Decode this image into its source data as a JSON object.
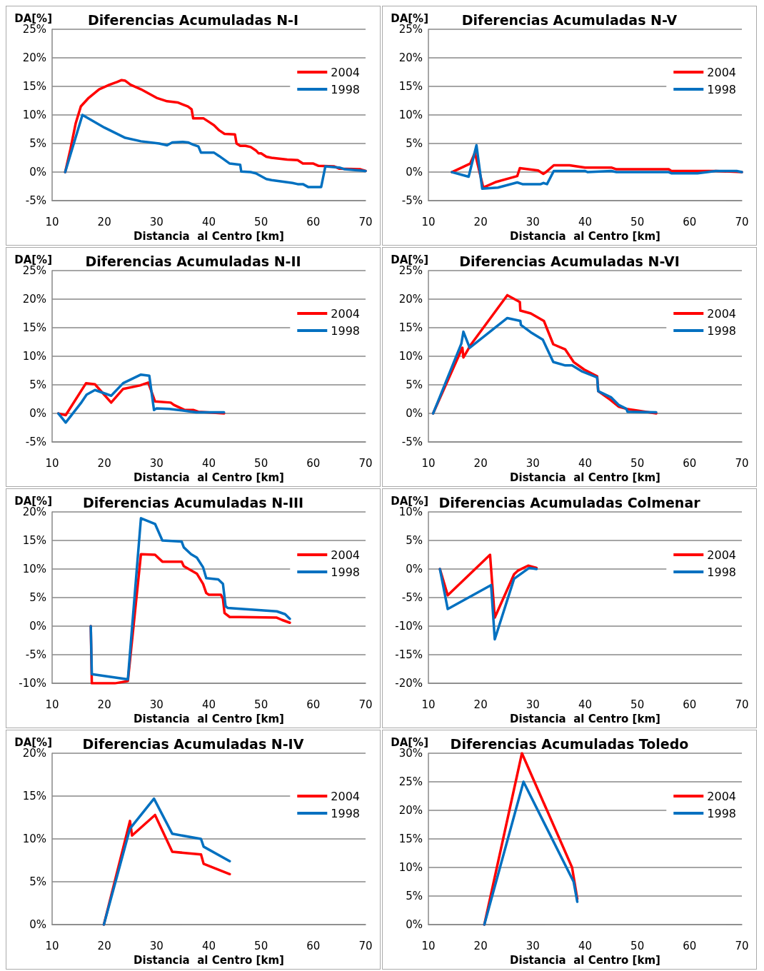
{
  "chart_data": [
    {
      "type": "line",
      "title": "Diferencias Acumuladas N-I",
      "xlabel": "Distancia  al Centro [km]",
      "ylabel": "DA[%]",
      "xlim": [
        10,
        70
      ],
      "xticks": [
        10,
        20,
        30,
        40,
        50,
        60,
        70
      ],
      "ylim": [
        -5,
        25
      ],
      "yticks": [
        {
          "value": -5,
          "label": "-5%"
        },
        {
          "value": 0,
          "label": "0%"
        },
        {
          "value": 5,
          "label": "5%"
        },
        {
          "value": 10,
          "label": "10%"
        },
        {
          "value": 15,
          "label": "15%"
        },
        {
          "value": 20,
          "label": "20%"
        },
        {
          "value": 25,
          "label": "25%"
        }
      ],
      "grid": "y",
      "legend": "right",
      "marker": "none",
      "series": [
        {
          "name": "2004",
          "color": "#ff0000",
          "x": [
            12.5,
            13.5,
            14.5,
            15.5,
            17,
            19,
            21,
            22.5,
            23.3,
            24,
            25,
            27,
            29,
            30,
            32,
            34,
            36,
            36.7,
            37,
            39,
            40,
            41,
            42,
            43,
            45,
            45.3,
            46,
            47,
            48,
            49,
            49.5,
            50,
            51,
            52,
            55,
            57,
            58,
            60,
            61,
            64,
            65,
            69,
            70
          ],
          "values": [
            0,
            4,
            8.5,
            11.5,
            13,
            14.5,
            15.3,
            15.8,
            16.1,
            16,
            15.3,
            14.5,
            13.5,
            13,
            12.4,
            12.2,
            11.5,
            11,
            9.4,
            9.4,
            8.8,
            8.2,
            7.3,
            6.7,
            6.6,
            5,
            4.6,
            4.6,
            4.4,
            3.8,
            3.3,
            3.3,
            2.7,
            2.5,
            2.2,
            2.1,
            1.5,
            1.5,
            1.1,
            1,
            0.6,
            0.5,
            0.2
          ]
        },
        {
          "name": "1998",
          "color": "#0070c0",
          "x": [
            12.5,
            15.8,
            20,
            24,
            27,
            30.5,
            32,
            33,
            35,
            36,
            37,
            38,
            38.5,
            41,
            42,
            44,
            46,
            46.2,
            48,
            49,
            50,
            51,
            52,
            56,
            57,
            58,
            59,
            61.5,
            62.3,
            65,
            66,
            70
          ],
          "values": [
            0,
            10,
            7.8,
            6,
            5.4,
            5,
            4.7,
            5.2,
            5.3,
            5.2,
            4.8,
            4.5,
            3.4,
            3.4,
            2.8,
            1.5,
            1.3,
            0.1,
            0,
            -0.2,
            -0.7,
            -1.2,
            -1.4,
            -1.9,
            -2.1,
            -2.1,
            -2.6,
            -2.6,
            1,
            0.8,
            0.5,
            0.2
          ]
        }
      ]
    },
    {
      "type": "line",
      "title": "Diferencias Acumuladas N-V",
      "xlabel": "Distancia  al Centro [km]",
      "ylabel": "DA[%]",
      "xlim": [
        10,
        70
      ],
      "xticks": [
        10,
        20,
        30,
        40,
        50,
        60,
        70
      ],
      "ylim": [
        -5,
        25
      ],
      "yticks": [
        {
          "value": -5,
          "label": "-5%"
        },
        {
          "value": 0,
          "label": "0%"
        },
        {
          "value": 5,
          "label": "5%"
        },
        {
          "value": 10,
          "label": "10%"
        },
        {
          "value": 15,
          "label": "15%"
        },
        {
          "value": 20,
          "label": "20%"
        },
        {
          "value": 25,
          "label": "25%"
        }
      ],
      "grid": "y",
      "legend": "right",
      "marker": "none",
      "series": [
        {
          "name": "2004",
          "color": "#ff0000",
          "x": [
            14.5,
            18,
            18.9,
            20.5,
            23,
            27,
            27.5,
            31,
            32,
            32.5,
            34,
            37,
            40,
            45,
            46,
            56,
            56.5,
            65,
            70
          ],
          "values": [
            0,
            1.5,
            3.4,
            -2.7,
            -1.7,
            -0.7,
            0.7,
            0.3,
            -0.3,
            0,
            1.2,
            1.2,
            0.8,
            0.8,
            0.5,
            0.5,
            0.2,
            0.2,
            0
          ]
        },
        {
          "name": "1998",
          "color": "#0070c0",
          "x": [
            14.5,
            17.7,
            19.2,
            20.3,
            23.3,
            27,
            28,
            31.5,
            32,
            32.7,
            34,
            40,
            40.5,
            45,
            46,
            56,
            56.5,
            61.5,
            65,
            69,
            70
          ],
          "values": [
            0,
            -0.8,
            4.7,
            -2.9,
            -2.7,
            -1.8,
            -2.1,
            -2.1,
            -1.9,
            -2.1,
            0.2,
            0.2,
            0,
            0.2,
            0,
            0,
            -0.2,
            -0.2,
            0.2,
            0.2,
            0
          ]
        }
      ]
    },
    {
      "type": "line",
      "title": "Diferencias Acumuladas N-II",
      "xlabel": "Distancia  al Centro [km]",
      "ylabel": "DA[%]",
      "xlim": [
        10,
        70
      ],
      "xticks": [
        10,
        20,
        30,
        40,
        50,
        60,
        70
      ],
      "ylim": [
        -5,
        25
      ],
      "yticks": [
        {
          "value": -5,
          "label": "-5%"
        },
        {
          "value": 0,
          "label": "0%"
        },
        {
          "value": 5,
          "label": "5%"
        },
        {
          "value": 10,
          "label": "10%"
        },
        {
          "value": 15,
          "label": "15%"
        },
        {
          "value": 20,
          "label": "20%"
        },
        {
          "value": 25,
          "label": "25%"
        }
      ],
      "grid": "y",
      "legend": "right",
      "marker": "none",
      "series": [
        {
          "name": "2004",
          "color": "#ff0000",
          "x": [
            11.2,
            12.6,
            16.5,
            18.2,
            21.3,
            23.6,
            26.8,
            28.4,
            29.7,
            32.7,
            33.3,
            35.4,
            37,
            38,
            42.9
          ],
          "values": [
            0,
            -0.3,
            5.3,
            5.1,
            1.9,
            4.3,
            4.9,
            5.4,
            2.1,
            1.9,
            1.5,
            0.6,
            0.6,
            0.3,
            0
          ]
        },
        {
          "name": "1998",
          "color": "#0070c0",
          "x": [
            11.2,
            12.6,
            15.5,
            16.6,
            18.2,
            21.3,
            23.6,
            27,
            28.6,
            29.5,
            30,
            32.4,
            37.6,
            42.9
          ],
          "values": [
            0,
            -1.6,
            1.8,
            3.3,
            4.1,
            3.1,
            5.3,
            6.8,
            6.6,
            0.6,
            0.9,
            0.8,
            0.2,
            0.2
          ]
        }
      ]
    },
    {
      "type": "line",
      "title": "Diferencias Acumuladas N-VI",
      "xlabel": "Distancia  al Centro [km]",
      "ylabel": "DA[%]",
      "xlim": [
        10,
        70
      ],
      "xticks": [
        10,
        20,
        30,
        40,
        50,
        60,
        70
      ],
      "ylim": [
        -5,
        25
      ],
      "yticks": [
        {
          "value": -5,
          "label": "-5%"
        },
        {
          "value": 0,
          "label": "0%"
        },
        {
          "value": 5,
          "label": "5%"
        },
        {
          "value": 10,
          "label": "10%"
        },
        {
          "value": 15,
          "label": "15%"
        },
        {
          "value": 20,
          "label": "20%"
        },
        {
          "value": 25,
          "label": "25%"
        }
      ],
      "grid": "y",
      "legend": "right",
      "marker": "none",
      "series": [
        {
          "name": "2004",
          "color": "#ff0000",
          "x": [
            10.9,
            16.5,
            16.7,
            18.1,
            25.1,
            27.5,
            27.6,
            29.6,
            32.1,
            33.9,
            36.2,
            37.8,
            39.8,
            42.3,
            42.5,
            44.8,
            46.4,
            47.9,
            53.6
          ],
          "values": [
            0,
            11.5,
            9.8,
            12,
            20.7,
            19.5,
            18,
            17.5,
            16.2,
            12.1,
            11.2,
            9,
            7.7,
            6.5,
            3.9,
            2.4,
            1.2,
            0.8,
            0
          ]
        },
        {
          "name": "1998",
          "color": "#0070c0",
          "x": [
            10.9,
            16.3,
            16.7,
            17.9,
            25.1,
            27.6,
            27.7,
            29.6,
            31.9,
            33.9,
            36.2,
            37.5,
            39.3,
            42.3,
            42.5,
            45,
            46.4,
            47.9,
            48.1,
            53.6
          ],
          "values": [
            0,
            12.2,
            14.3,
            11.5,
            16.7,
            16.2,
            15.5,
            14.2,
            12.9,
            9,
            8.4,
            8.4,
            7.4,
            6.3,
            3.9,
            2.8,
            1.5,
            0.8,
            0.3,
            0.2
          ]
        }
      ]
    },
    {
      "type": "line",
      "title": "Diferencias Acumuladas N-III",
      "xlabel": "Distancia  al Centro [km]",
      "ylabel": "DA[%]",
      "xlim": [
        10,
        70
      ],
      "xticks": [
        10,
        20,
        30,
        40,
        50,
        60,
        70
      ],
      "ylim": [
        -10,
        20
      ],
      "yticks": [
        {
          "value": -10,
          "label": "-10%"
        },
        {
          "value": -5,
          "label": "-5%"
        },
        {
          "value": 0,
          "label": "0%"
        },
        {
          "value": 5,
          "label": "5%"
        },
        {
          "value": 10,
          "label": "10%"
        },
        {
          "value": 15,
          "label": "15%"
        },
        {
          "value": 20,
          "label": "20%"
        }
      ],
      "grid": "y",
      "legend": "right",
      "marker": "none",
      "series": [
        {
          "name": "2004",
          "color": "#ff0000",
          "x": [
            17.4,
            17.6,
            22,
            24.5,
            27,
            29.7,
            31.1,
            34.8,
            35.2,
            37.7,
            38.9,
            39.5,
            40,
            42.3,
            42.7,
            43,
            44,
            46,
            53,
            54,
            55.5
          ],
          "values": [
            0,
            -10,
            -10,
            -9.6,
            12.6,
            12.5,
            11.3,
            11.3,
            10.5,
            9.2,
            7.4,
            5.8,
            5.5,
            5.5,
            4.8,
            2.3,
            1.6,
            1.6,
            1.5,
            1.1,
            0.6
          ]
        },
        {
          "name": "1998",
          "color": "#0070c0",
          "x": [
            17.4,
            17.6,
            24.5,
            27,
            29.7,
            31.1,
            34.8,
            35.2,
            36.6,
            37.7,
            38.9,
            39.5,
            41.8,
            42.7,
            43.2,
            43.6,
            53,
            54.6,
            55.5
          ],
          "values": [
            0,
            -8.4,
            -9.3,
            18.9,
            17.9,
            15,
            14.8,
            13.8,
            12.6,
            12,
            10.3,
            8.4,
            8.2,
            7.4,
            3.5,
            3.2,
            2.6,
            2.1,
            1.3
          ]
        }
      ]
    },
    {
      "type": "line",
      "title": "Diferencias Acumuladas Colmenar",
      "xlabel": "Distancia  al Centro [km]",
      "ylabel": "DA[%]",
      "xlim": [
        10,
        70
      ],
      "xticks": [
        10,
        20,
        30,
        40,
        50,
        60,
        70
      ],
      "ylim": [
        -20,
        10
      ],
      "yticks": [
        {
          "value": -20,
          "label": "-20%"
        },
        {
          "value": -15,
          "label": "-15%"
        },
        {
          "value": -10,
          "label": "-10%"
        },
        {
          "value": -5,
          "label": "-5%"
        },
        {
          "value": 0,
          "label": "0%"
        },
        {
          "value": 5,
          "label": "5%"
        },
        {
          "value": 10,
          "label": "10%"
        }
      ],
      "grid": "y",
      "legend": "right",
      "marker": "none",
      "series": [
        {
          "name": "2004",
          "color": "#ff0000",
          "x": [
            12.2,
            13.7,
            21.8,
            22.7,
            26.4,
            27.1,
            29.1,
            30.7
          ],
          "values": [
            0,
            -4.6,
            2.5,
            -8.5,
            -0.9,
            -0.3,
            0.6,
            0.2
          ]
        },
        {
          "name": "1998",
          "color": "#0070c0",
          "x": [
            12.2,
            13.7,
            22,
            22.7,
            26.4,
            27.3,
            29.3,
            30.7
          ],
          "values": [
            0,
            -7,
            -2.8,
            -12.3,
            -1.7,
            -1.1,
            0.2,
            0
          ]
        }
      ]
    },
    {
      "type": "line",
      "title": "Diferencias Acumuladas N-IV",
      "xlabel": "Distancia  al Centro [km]",
      "ylabel": "DA[%]",
      "xlim": [
        10,
        70
      ],
      "xticks": [
        10,
        20,
        30,
        40,
        50,
        60,
        70
      ],
      "ylim": [
        0,
        20
      ],
      "yticks": [
        {
          "value": 0,
          "label": "0%"
        },
        {
          "value": 5,
          "label": "5%"
        },
        {
          "value": 10,
          "label": "10%"
        },
        {
          "value": 15,
          "label": "15%"
        },
        {
          "value": 20,
          "label": "20%"
        }
      ],
      "grid": "y",
      "legend": "right",
      "marker": "none",
      "series": [
        {
          "name": "2004",
          "color": "#ff0000",
          "x": [
            19.9,
            24.9,
            25.3,
            29.7,
            33,
            38.5,
            39,
            44
          ],
          "values": [
            0,
            12.1,
            10.4,
            12.8,
            8.5,
            8.2,
            7.1,
            5.9
          ]
        },
        {
          "name": "1998",
          "color": "#0070c0",
          "x": [
            19.9,
            24.9,
            29.5,
            33,
            38.5,
            39,
            44
          ],
          "values": [
            0,
            11.2,
            14.7,
            10.6,
            10,
            9.1,
            7.4
          ]
        }
      ]
    },
    {
      "type": "line",
      "title": "Diferencias Acumuladas Toledo",
      "xlabel": "Distancia  al Centro [km]",
      "ylabel": "DA[%]",
      "xlim": [
        10,
        70
      ],
      "xticks": [
        10,
        20,
        30,
        40,
        50,
        60,
        70
      ],
      "ylim": [
        0,
        30
      ],
      "yticks": [
        {
          "value": 0,
          "label": "0%"
        },
        {
          "value": 5,
          "label": "5%"
        },
        {
          "value": 10,
          "label": "10%"
        },
        {
          "value": 15,
          "label": "15%"
        },
        {
          "value": 20,
          "label": "20%"
        },
        {
          "value": 25,
          "label": "25%"
        },
        {
          "value": 30,
          "label": "30%"
        }
      ],
      "grid": "y",
      "legend": "right",
      "marker": "none",
      "series": [
        {
          "name": "2004",
          "color": "#ff0000",
          "x": [
            20.7,
            27.9,
            37.5,
            38.5
          ],
          "values": [
            0,
            30,
            10,
            4.5
          ]
        },
        {
          "name": "1998",
          "color": "#0070c0",
          "x": [
            20.7,
            28.2,
            37.8,
            38.5
          ],
          "values": [
            0,
            25,
            7.5,
            4
          ]
        }
      ]
    }
  ]
}
